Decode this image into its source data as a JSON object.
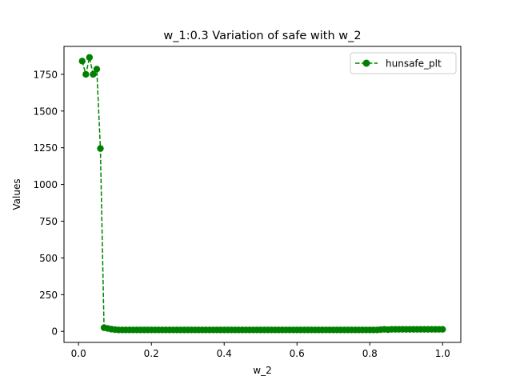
{
  "chart_data": {
    "type": "line",
    "title": "w_1:0.3 Variation of safe with w_2",
    "xlabel": "w_2",
    "ylabel": "Values",
    "xlim": [
      -0.04,
      1.05
    ],
    "ylim": [
      -75,
      1940
    ],
    "xticks": [
      0.0,
      0.2,
      0.4,
      0.6,
      0.8,
      1.0
    ],
    "xtick_labels": [
      "0.0",
      "0.2",
      "0.4",
      "0.6",
      "0.8",
      "1.0"
    ],
    "yticks": [
      0,
      250,
      500,
      750,
      1000,
      1250,
      1500,
      1750
    ],
    "ytick_labels": [
      "0",
      "250",
      "500",
      "750",
      "1000",
      "1250",
      "1500",
      "1750"
    ],
    "grid": false,
    "legend": {
      "position": "top-right",
      "entries": [
        "hunsafe_plt"
      ]
    },
    "series": [
      {
        "name": "hunsafe_plt",
        "color": "#008000",
        "linestyle": "dashed",
        "marker": "circle",
        "x": [
          0.01,
          0.02,
          0.03,
          0.04,
          0.05,
          0.06,
          0.07,
          0.08,
          0.09,
          0.1,
          0.11,
          0.12,
          0.13,
          0.14,
          0.15,
          0.16,
          0.17,
          0.18,
          0.19,
          0.2,
          0.21,
          0.22,
          0.23,
          0.24,
          0.25,
          0.26,
          0.27,
          0.28,
          0.29,
          0.3,
          0.31,
          0.32,
          0.33,
          0.34,
          0.35,
          0.36,
          0.37,
          0.38,
          0.39,
          0.4,
          0.41,
          0.42,
          0.43,
          0.44,
          0.45,
          0.46,
          0.47,
          0.48,
          0.49,
          0.5,
          0.51,
          0.52,
          0.53,
          0.54,
          0.55,
          0.56,
          0.57,
          0.58,
          0.59,
          0.6,
          0.61,
          0.62,
          0.63,
          0.64,
          0.65,
          0.66,
          0.67,
          0.68,
          0.69,
          0.7,
          0.71,
          0.72,
          0.73,
          0.74,
          0.75,
          0.76,
          0.77,
          0.78,
          0.79,
          0.8,
          0.81,
          0.82,
          0.83,
          0.84,
          0.85,
          0.86,
          0.87,
          0.88,
          0.89,
          0.9,
          0.91,
          0.92,
          0.93,
          0.94,
          0.95,
          0.96,
          0.97,
          0.98,
          0.99,
          1.0
        ],
        "y": [
          1840,
          1750,
          1865,
          1750,
          1785,
          1245,
          25,
          20,
          15,
          12,
          10,
          10,
          10,
          10,
          10,
          10,
          10,
          10,
          10,
          10,
          10,
          10,
          10,
          10,
          10,
          10,
          10,
          10,
          10,
          10,
          10,
          10,
          10,
          10,
          10,
          10,
          10,
          10,
          10,
          10,
          10,
          10,
          10,
          10,
          10,
          10,
          10,
          10,
          10,
          10,
          10,
          10,
          10,
          10,
          10,
          10,
          10,
          10,
          10,
          10,
          10,
          10,
          10,
          10,
          10,
          10,
          10,
          10,
          10,
          10,
          10,
          10,
          10,
          10,
          10,
          10,
          10,
          10,
          10,
          10,
          10,
          10,
          12,
          14,
          12,
          14,
          14,
          14,
          14,
          14,
          14,
          14,
          14,
          14,
          14,
          14,
          14,
          14,
          14,
          14
        ]
      }
    ]
  }
}
